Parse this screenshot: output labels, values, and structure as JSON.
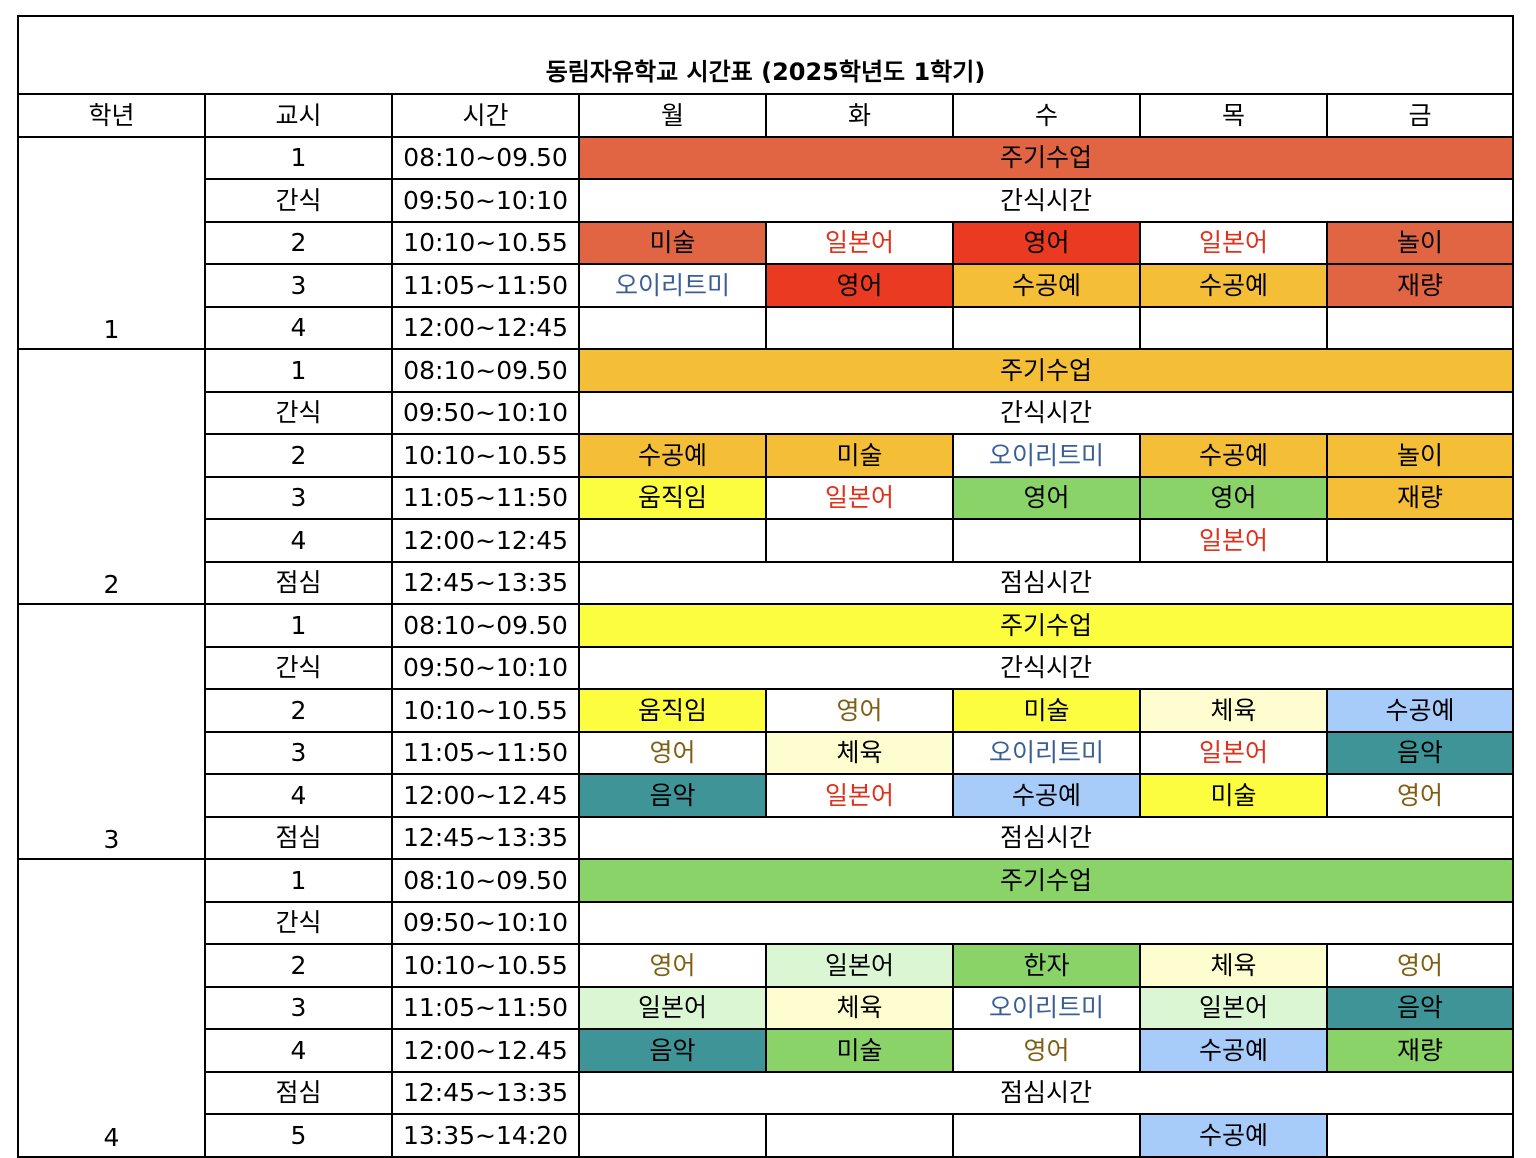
{
  "title": "동림자유학교 시간표 (2025학년도 1학기)",
  "headers": [
    "학년",
    "교시",
    "시간",
    "월",
    "화",
    "수",
    "목",
    "금"
  ],
  "palette": {
    "red": "#e26543",
    "bright_red": "#ea3b22",
    "orange": "#f4bf37",
    "yellow": "#fdfd3f",
    "light_yellow": "#fefdd0",
    "light_blue": "#a8ccfa",
    "teal": "#3e9497",
    "green": "#8ad368",
    "light_green": "#dbf6d2"
  },
  "text_colors": {
    "blue": "#3a5f94",
    "red": "#e0311b",
    "brown": "#7e5f13"
  },
  "grades": [
    {
      "grade": "1",
      "rows": [
        {
          "period": "1",
          "time": "08:10~09.50",
          "span": {
            "label": "주기수업",
            "bg": "red"
          }
        },
        {
          "period": "간식",
          "time": "09:50~10:10",
          "span": {
            "label": "간식시간",
            "bg": ""
          }
        },
        {
          "period": "2",
          "time": "10:10~10.55",
          "cells": [
            {
              "label": "미술",
              "bg": "red"
            },
            {
              "label": "일본어",
              "fg": "red"
            },
            {
              "label": "영어",
              "bg": "bright_red"
            },
            {
              "label": "일본어",
              "fg": "red"
            },
            {
              "label": "놀이",
              "bg": "red"
            }
          ]
        },
        {
          "period": "3",
          "time": "11:05~11:50",
          "cells": [
            {
              "label": "오이리트미",
              "fg": "blue"
            },
            {
              "label": "영어",
              "bg": "bright_red"
            },
            {
              "label": "수공예",
              "bg": "orange"
            },
            {
              "label": "수공예",
              "bg": "orange"
            },
            {
              "label": "재량",
              "bg": "red"
            }
          ]
        },
        {
          "period": "4",
          "time": "12:00~12:45",
          "cells": [
            {
              "label": ""
            },
            {
              "label": ""
            },
            {
              "label": ""
            },
            {
              "label": ""
            },
            {
              "label": ""
            }
          ]
        }
      ]
    },
    {
      "grade": "2",
      "rows": [
        {
          "period": "1",
          "time": "08:10~09.50",
          "span": {
            "label": "주기수업",
            "bg": "orange"
          }
        },
        {
          "period": "간식",
          "time": "09:50~10:10",
          "span": {
            "label": "간식시간",
            "bg": ""
          }
        },
        {
          "period": "2",
          "time": "10:10~10.55",
          "cells": [
            {
              "label": "수공예",
              "bg": "orange"
            },
            {
              "label": "미술",
              "bg": "orange"
            },
            {
              "label": "오이리트미",
              "fg": "blue"
            },
            {
              "label": "수공예",
              "bg": "orange"
            },
            {
              "label": "놀이",
              "bg": "orange"
            }
          ]
        },
        {
          "period": "3",
          "time": "11:05~11:50",
          "cells": [
            {
              "label": "움직임",
              "bg": "yellow"
            },
            {
              "label": "일본어",
              "fg": "red"
            },
            {
              "label": "영어",
              "bg": "green"
            },
            {
              "label": "영어",
              "bg": "green"
            },
            {
              "label": "재량",
              "bg": "orange"
            }
          ]
        },
        {
          "period": "4",
          "time": "12:00~12:45",
          "cells": [
            {
              "label": ""
            },
            {
              "label": ""
            },
            {
              "label": ""
            },
            {
              "label": "일본어",
              "fg": "red"
            },
            {
              "label": ""
            }
          ]
        },
        {
          "period": "점심",
          "time": "12:45~13:35",
          "span": {
            "label": "점심시간",
            "bg": ""
          }
        }
      ]
    },
    {
      "grade": "3",
      "rows": [
        {
          "period": "1",
          "time": "08:10~09.50",
          "span": {
            "label": "주기수업",
            "bg": "yellow"
          }
        },
        {
          "period": "간식",
          "time": "09:50~10:10",
          "span": {
            "label": "간식시간",
            "bg": ""
          }
        },
        {
          "period": "2",
          "time": "10:10~10.55",
          "cells": [
            {
              "label": "움직임",
              "bg": "yellow"
            },
            {
              "label": "영어",
              "fg": "brown"
            },
            {
              "label": "미술",
              "bg": "yellow"
            },
            {
              "label": "체육",
              "bg": "light_yellow"
            },
            {
              "label": "수공예",
              "bg": "light_blue"
            }
          ]
        },
        {
          "period": "3",
          "time": "11:05~11:50",
          "cells": [
            {
              "label": "영어",
              "fg": "brown"
            },
            {
              "label": "체육",
              "bg": "light_yellow"
            },
            {
              "label": "오이리트미",
              "fg": "blue"
            },
            {
              "label": "일본어",
              "fg": "red"
            },
            {
              "label": "음악",
              "bg": "teal"
            }
          ]
        },
        {
          "period": "4",
          "time": "12:00~12.45",
          "cells": [
            {
              "label": "음악",
              "bg": "teal"
            },
            {
              "label": "일본어",
              "fg": "red"
            },
            {
              "label": "수공예",
              "bg": "light_blue"
            },
            {
              "label": "미술",
              "bg": "yellow"
            },
            {
              "label": "영어",
              "fg": "brown"
            }
          ]
        },
        {
          "period": "점심",
          "time": "12:45~13:35",
          "span": {
            "label": "점심시간",
            "bg": ""
          }
        }
      ]
    },
    {
      "grade": "4",
      "rows": [
        {
          "period": "1",
          "time": "08:10~09.50",
          "span": {
            "label": "주기수업",
            "bg": "green"
          }
        },
        {
          "period": "간식",
          "time": "09:50~10:10",
          "span": {
            "label": "",
            "bg": ""
          }
        },
        {
          "period": "2",
          "time": "10:10~10.55",
          "cells": [
            {
              "label": "영어",
              "fg": "brown"
            },
            {
              "label": "일본어",
              "bg": "light_green"
            },
            {
              "label": "한자",
              "bg": "green"
            },
            {
              "label": "체육",
              "bg": "light_yellow"
            },
            {
              "label": "영어",
              "fg": "brown"
            }
          ]
        },
        {
          "period": "3",
          "time": "11:05~11:50",
          "cells": [
            {
              "label": "일본어",
              "bg": "light_green"
            },
            {
              "label": "체육",
              "bg": "light_yellow"
            },
            {
              "label": "오이리트미",
              "fg": "blue"
            },
            {
              "label": "일본어",
              "bg": "light_green"
            },
            {
              "label": "음악",
              "bg": "teal"
            }
          ]
        },
        {
          "period": "4",
          "time": "12:00~12.45",
          "cells": [
            {
              "label": "음악",
              "bg": "teal"
            },
            {
              "label": "미술",
              "bg": "green"
            },
            {
              "label": "영어",
              "fg": "brown"
            },
            {
              "label": "수공예",
              "bg": "light_blue"
            },
            {
              "label": "재량",
              "bg": "green"
            }
          ]
        },
        {
          "period": "점심",
          "time": "12:45~13:35",
          "span": {
            "label": "점심시간",
            "bg": ""
          }
        },
        {
          "period": "5",
          "time": "13:35~14:20",
          "cells": [
            {
              "label": ""
            },
            {
              "label": ""
            },
            {
              "label": ""
            },
            {
              "label": "수공예",
              "bg": "light_blue"
            },
            {
              "label": ""
            }
          ]
        }
      ]
    }
  ]
}
